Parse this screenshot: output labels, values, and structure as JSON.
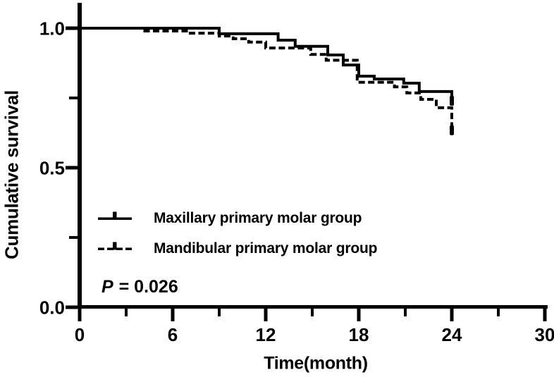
{
  "chart_data": {
    "type": "line",
    "subtype": "kaplan_meier_step",
    "title": "",
    "xlabel": "Time(month)",
    "ylabel": "Cumulative survival",
    "xlim": [
      0,
      30
    ],
    "ylim": [
      0.0,
      1.0
    ],
    "grid": false,
    "legend_position": "inside-lower-left",
    "x_major_ticks": [
      0,
      6,
      12,
      18,
      24,
      30
    ],
    "x_minor_ticks": [
      3,
      9,
      15,
      21,
      27
    ],
    "y_major_ticks": [
      {
        "value": 1.0,
        "label": "1.0"
      },
      {
        "value": 0.5,
        "label": "0.5"
      },
      {
        "value": 0.0,
        "label": "0.0"
      }
    ],
    "y_minor_ticks": [
      0.75,
      0.25
    ],
    "annotation": {
      "p_italic": "P",
      "p_text": " = 0.026",
      "p_value": "0.026"
    },
    "colors": {
      "ink": "#000000",
      "background": "#ffffff"
    },
    "series": [
      {
        "key": "maxillary",
        "name": "Maxillary primary molar group",
        "line_style": "solid",
        "color": "#000000",
        "end_month": 24,
        "points": [
          [
            0,
            1.0
          ],
          [
            9,
            0.98
          ],
          [
            12.8,
            0.957
          ],
          [
            13.9,
            0.935
          ],
          [
            16,
            0.904
          ],
          [
            17,
            0.868
          ],
          [
            18,
            0.828
          ],
          [
            19,
            0.818
          ],
          [
            20.9,
            0.803
          ],
          [
            21.9,
            0.773
          ],
          [
            24,
            0.735
          ]
        ]
      },
      {
        "key": "mandibular",
        "name": "Mandibular primary molar group",
        "line_style": "dashed",
        "color": "#000000",
        "end_month": 24,
        "points": [
          [
            0,
            1.0
          ],
          [
            4.1,
            0.99
          ],
          [
            7,
            0.982
          ],
          [
            9,
            0.972
          ],
          [
            9.9,
            0.962
          ],
          [
            10.9,
            0.95
          ],
          [
            12,
            0.929
          ],
          [
            14.9,
            0.906
          ],
          [
            15.9,
            0.885
          ],
          [
            17.9,
            0.806
          ],
          [
            20.3,
            0.79
          ],
          [
            21.1,
            0.768
          ],
          [
            22,
            0.745
          ],
          [
            23,
            0.715
          ],
          [
            24,
            0.629
          ]
        ]
      }
    ]
  }
}
